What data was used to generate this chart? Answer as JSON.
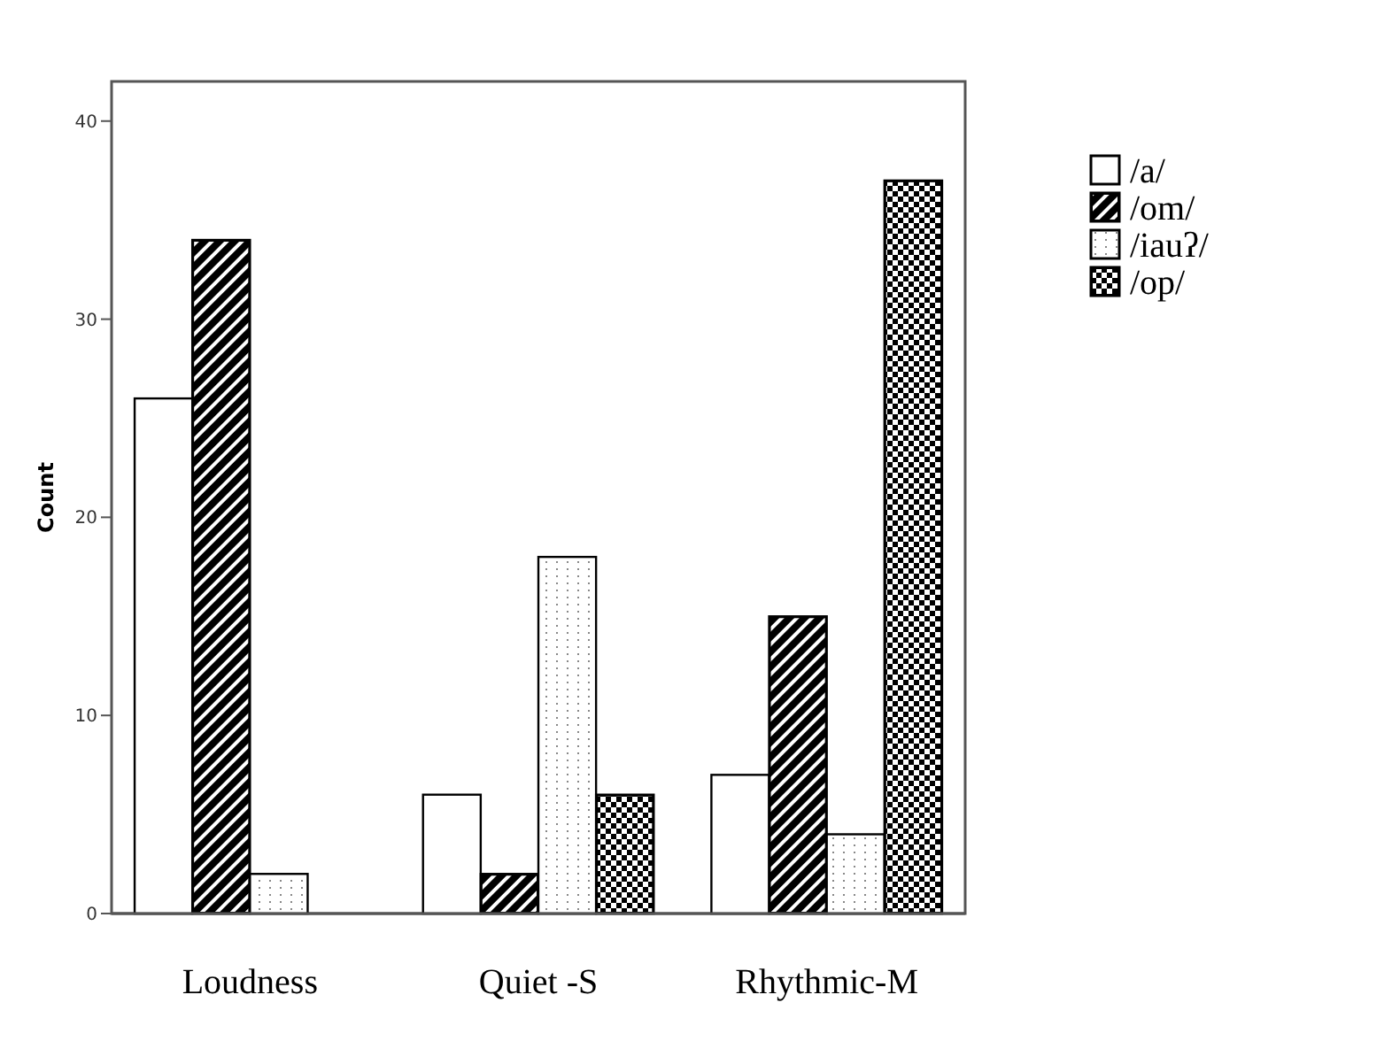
{
  "chart_data": {
    "type": "bar",
    "ylabel": "Count",
    "categories": [
      "Loudness",
      "Quiet -S",
      "Rhythmic-M"
    ],
    "series": [
      {
        "name": "/a/",
        "color": "#ffffff",
        "values": [
          26,
          6,
          7
        ]
      },
      {
        "name": "/om/",
        "color": "#000000",
        "values": [
          34,
          2,
          15
        ]
      },
      {
        "name": "/iauʔ/",
        "color": "#ffffff",
        "values": [
          2,
          18,
          4
        ]
      },
      {
        "name": "/op/",
        "color": "#000000",
        "values": [
          0,
          6,
          37
        ]
      }
    ],
    "ylim": [
      0,
      42
    ],
    "yticks": [
      0,
      10,
      20,
      30,
      40
    ],
    "grid": false,
    "legend": "right"
  }
}
